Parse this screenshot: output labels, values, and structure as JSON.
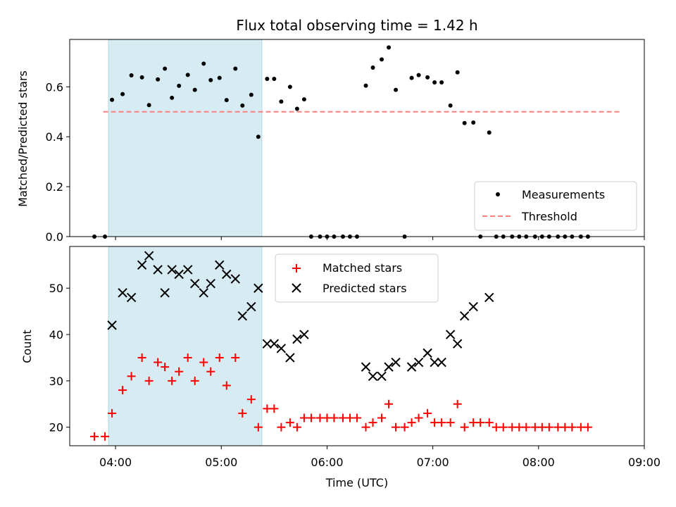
{
  "chart_data": {
    "title": "Flux total observing time = 1.42 h",
    "shaded_region": {
      "x_start": "03:56",
      "x_end": "05:23",
      "color": "#add8e6"
    },
    "xlabel": "Time (UTC)",
    "x_tick_labels": [
      "04:00",
      "05:00",
      "06:00",
      "07:00",
      "08:00",
      "09:00"
    ],
    "xlim": [
      "03:34",
      "09:00"
    ],
    "panels": [
      {
        "type": "scatter",
        "ylabel": "Matched/Predicted stars",
        "ylim": [
          0,
          0.79
        ],
        "y_ticks": [
          "0.0",
          "0.2",
          "0.4",
          "0.6"
        ],
        "legend_position": "lower-right",
        "series": [
          {
            "name": "Measurements",
            "marker": "dot",
            "color": "#000000",
            "points": [
              [
                "03:48",
                0.0
              ],
              [
                "03:54",
                0.0
              ],
              [
                "03:58",
                0.548
              ],
              [
                "04:04",
                0.571
              ],
              [
                "04:09",
                0.646
              ],
              [
                "04:15",
                0.638
              ],
              [
                "04:19",
                0.527
              ],
              [
                "04:24",
                0.63
              ],
              [
                "04:28",
                0.673
              ],
              [
                "04:32",
                0.556
              ],
              [
                "04:36",
                0.604
              ],
              [
                "04:41",
                0.648
              ],
              [
                "04:45",
                0.588
              ],
              [
                "04:50",
                0.693
              ],
              [
                "04:54",
                0.627
              ],
              [
                "04:59",
                0.636
              ],
              [
                "05:03",
                0.547
              ],
              [
                "05:08",
                0.673
              ],
              [
                "05:12",
                0.525
              ],
              [
                "05:17",
                0.568
              ],
              [
                "05:21",
                0.4
              ],
              [
                "05:26",
                0.632
              ],
              [
                "05:30",
                0.632
              ],
              [
                "05:34",
                0.541
              ],
              [
                "05:39",
                0.6
              ],
              [
                "05:43",
                0.512
              ],
              [
                "05:47",
                0.55
              ],
              [
                "05:51",
                0.0
              ],
              [
                "05:56",
                0.0
              ],
              [
                "06:00",
                0.0
              ],
              [
                "06:04",
                0.0
              ],
              [
                "06:09",
                0.0
              ],
              [
                "06:13",
                0.0
              ],
              [
                "06:17",
                0.0
              ],
              [
                "06:22",
                0.605
              ],
              [
                "06:26",
                0.677
              ],
              [
                "06:31",
                0.71
              ],
              [
                "06:35",
                0.758
              ],
              [
                "06:39",
                0.588
              ],
              [
                "06:44",
                0.0
              ],
              [
                "06:48",
                0.636
              ],
              [
                "06:52",
                0.647
              ],
              [
                "06:57",
                0.638
              ],
              [
                "07:01",
                0.618
              ],
              [
                "07:05",
                0.618
              ],
              [
                "07:10",
                0.525
              ],
              [
                "07:14",
                0.658
              ],
              [
                "07:18",
                0.455
              ],
              [
                "07:23",
                0.457
              ],
              [
                "07:27",
                0.0
              ],
              [
                "07:32",
                0.417
              ],
              [
                "07:36",
                0.0
              ],
              [
                "07:40",
                0.0
              ],
              [
                "07:45",
                0.0
              ],
              [
                "07:49",
                0.0
              ],
              [
                "07:53",
                0.0
              ],
              [
                "07:58",
                0.0
              ],
              [
                "08:02",
                0.0
              ],
              [
                "08:06",
                0.0
              ],
              [
                "08:11",
                0.0
              ],
              [
                "08:15",
                0.0
              ],
              [
                "08:19",
                0.0
              ],
              [
                "08:24",
                0.0
              ],
              [
                "08:28",
                0.0
              ]
            ]
          },
          {
            "name": "Threshold",
            "marker": "dashed-line",
            "color": "#ff7f7f",
            "points": [
              [
                "03:53",
                0.5
              ],
              [
                "08:47",
                0.5
              ]
            ]
          }
        ]
      },
      {
        "type": "scatter",
        "ylabel": "Count",
        "ylim": [
          16,
          59
        ],
        "y_ticks": [
          "20",
          "30",
          "40",
          "50"
        ],
        "legend_position": "top-center",
        "series": [
          {
            "name": "Matched stars",
            "marker": "plus",
            "color": "#ff0000",
            "points": [
              [
                "03:48",
                18
              ],
              [
                "03:54",
                18
              ],
              [
                "03:58",
                23
              ],
              [
                "04:04",
                28
              ],
              [
                "04:09",
                31
              ],
              [
                "04:15",
                35
              ],
              [
                "04:19",
                30
              ],
              [
                "04:24",
                34
              ],
              [
                "04:28",
                33
              ],
              [
                "04:32",
                30
              ],
              [
                "04:36",
                32
              ],
              [
                "04:41",
                35
              ],
              [
                "04:45",
                30
              ],
              [
                "04:50",
                34
              ],
              [
                "04:54",
                32
              ],
              [
                "04:59",
                35
              ],
              [
                "05:03",
                29
              ],
              [
                "05:08",
                35
              ],
              [
                "05:12",
                23
              ],
              [
                "05:17",
                26
              ],
              [
                "05:21",
                20
              ],
              [
                "05:26",
                24
              ],
              [
                "05:30",
                24
              ],
              [
                "05:34",
                20
              ],
              [
                "05:39",
                21
              ],
              [
                "05:43",
                20
              ],
              [
                "05:47",
                22
              ],
              [
                "05:51",
                22
              ],
              [
                "05:56",
                22
              ],
              [
                "06:00",
                22
              ],
              [
                "06:04",
                22
              ],
              [
                "06:09",
                22
              ],
              [
                "06:13",
                22
              ],
              [
                "06:17",
                22
              ],
              [
                "06:22",
                20
              ],
              [
                "06:26",
                21
              ],
              [
                "06:31",
                22
              ],
              [
                "06:35",
                25
              ],
              [
                "06:39",
                20
              ],
              [
                "06:44",
                20
              ],
              [
                "06:48",
                21
              ],
              [
                "06:52",
                22
              ],
              [
                "06:57",
                23
              ],
              [
                "07:01",
                21
              ],
              [
                "07:05",
                21
              ],
              [
                "07:10",
                21
              ],
              [
                "07:14",
                25
              ],
              [
                "07:18",
                20
              ],
              [
                "07:23",
                21
              ],
              [
                "07:27",
                21
              ],
              [
                "07:32",
                21
              ],
              [
                "07:36",
                20
              ],
              [
                "07:40",
                20
              ],
              [
                "07:45",
                20
              ],
              [
                "07:49",
                20
              ],
              [
                "07:53",
                20
              ],
              [
                "07:58",
                20
              ],
              [
                "08:02",
                20
              ],
              [
                "08:06",
                20
              ],
              [
                "08:11",
                20
              ],
              [
                "08:15",
                20
              ],
              [
                "08:19",
                20
              ],
              [
                "08:24",
                20
              ],
              [
                "08:28",
                20
              ]
            ]
          },
          {
            "name": "Predicted stars",
            "marker": "x",
            "color": "#000000",
            "points": [
              [
                "03:58",
                42
              ],
              [
                "04:04",
                49
              ],
              [
                "04:09",
                48
              ],
              [
                "04:15",
                55
              ],
              [
                "04:19",
                57
              ],
              [
                "04:24",
                54
              ],
              [
                "04:28",
                49
              ],
              [
                "04:32",
                54
              ],
              [
                "04:36",
                53
              ],
              [
                "04:41",
                54
              ],
              [
                "04:45",
                51
              ],
              [
                "04:50",
                49
              ],
              [
                "04:54",
                51
              ],
              [
                "04:59",
                55
              ],
              [
                "05:03",
                53
              ],
              [
                "05:08",
                52
              ],
              [
                "05:12",
                44
              ],
              [
                "05:17",
                46
              ],
              [
                "05:21",
                50
              ],
              [
                "05:26",
                38
              ],
              [
                "05:30",
                38
              ],
              [
                "05:34",
                37
              ],
              [
                "05:39",
                35
              ],
              [
                "05:43",
                39
              ],
              [
                "05:47",
                40
              ],
              [
                "06:22",
                33
              ],
              [
                "06:26",
                31
              ],
              [
                "06:31",
                31
              ],
              [
                "06:35",
                33
              ],
              [
                "06:39",
                34
              ],
              [
                "06:48",
                33
              ],
              [
                "06:52",
                34
              ],
              [
                "06:57",
                36
              ],
              [
                "07:01",
                34
              ],
              [
                "07:05",
                34
              ],
              [
                "07:10",
                40
              ],
              [
                "07:14",
                38
              ],
              [
                "07:18",
                44
              ],
              [
                "07:23",
                46
              ],
              [
                "07:32",
                48
              ]
            ]
          }
        ]
      }
    ]
  }
}
